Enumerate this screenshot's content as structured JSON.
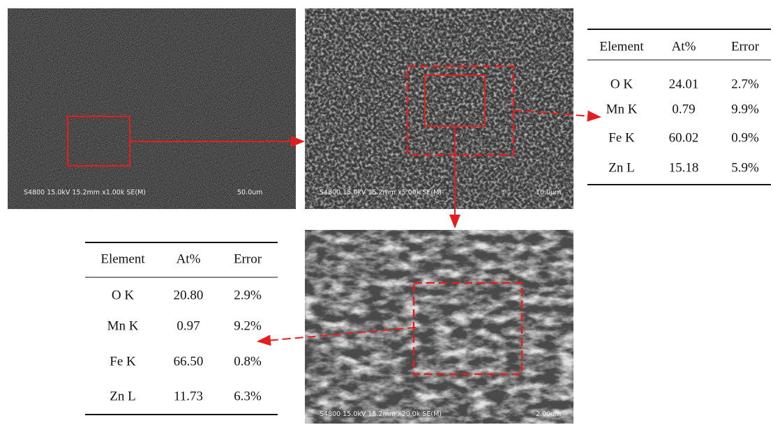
{
  "images": [
    {
      "caption": "S4800 15.0kV 15.2mm x1.00k SE(M)",
      "scale": "50.0um"
    },
    {
      "caption": "S4800 15.0kV 15.2mm x5.00k SE(M)",
      "scale": "10.0um"
    },
    {
      "caption": "S4800 15.0kV 15.2mm x20.0k SE(M)",
      "scale": "2.00um"
    }
  ],
  "tables": [
    {
      "header": [
        "Element",
        "At%",
        "Error"
      ],
      "rows": [
        [
          "O K",
          "24.01",
          "2.7%"
        ],
        [
          "Mn K",
          "0.79",
          "9.9%"
        ],
        [
          "Fe K",
          "60.02",
          "0.9%"
        ],
        [
          "Zn L",
          "15.18",
          "5.9%"
        ]
      ]
    },
    {
      "header": [
        "Element",
        "At%",
        "Error"
      ],
      "rows": [
        [
          "O K",
          "20.80",
          "2.9%"
        ],
        [
          "Mn K",
          "0.97",
          "9.2%"
        ],
        [
          "Fe K",
          "66.50",
          "0.8%"
        ],
        [
          "Zn L",
          "11.73",
          "6.3%"
        ]
      ]
    }
  ]
}
